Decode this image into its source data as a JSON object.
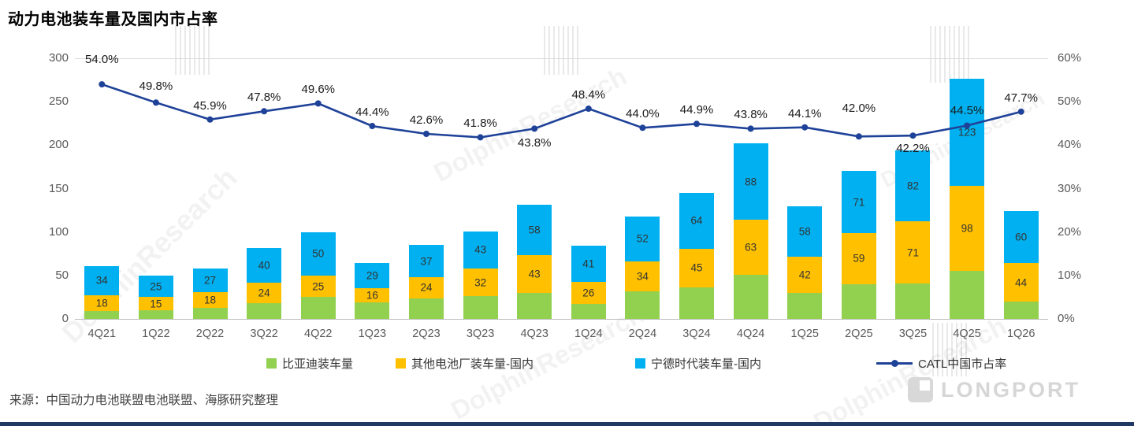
{
  "title": "动力电池装车量及国内市占率",
  "source_note": "来源：中国动力电池联盟电池联盟、海豚研究整理",
  "watermark": {
    "text": "DolphinResearch",
    "logo_text": "LONGPORT"
  },
  "colors": {
    "byd_green": "#92D050",
    "others_yellow": "#FFC000",
    "catl_blue": "#00B0F0",
    "share_line": "#1F4299",
    "axis_text": "#595959",
    "bottom_bar": "#1F3864"
  },
  "chart_data": {
    "type": "bar+line",
    "title": "动力电池装车量及国内市占率",
    "categories": [
      "4Q21",
      "1Q22",
      "2Q22",
      "3Q22",
      "4Q22",
      "1Q23",
      "2Q23",
      "3Q23",
      "4Q23",
      "1Q24",
      "2Q24",
      "3Q24",
      "4Q24",
      "1Q25",
      "2Q25",
      "3Q25",
      "4Q25",
      "1Q26"
    ],
    "stacked": true,
    "bar_series": [
      {
        "key": "byd",
        "name": "比亚迪装车量",
        "color": "#92D050",
        "values": [
          9,
          10,
          13,
          18,
          25,
          19,
          24,
          26,
          30,
          17,
          32,
          36,
          51,
          30,
          40,
          41,
          55,
          20
        ],
        "labels": [
          "",
          "",
          "",
          "",
          "",
          "",
          "",
          "",
          "",
          "",
          "",
          "",
          "",
          "",
          "",
          "",
          "",
          ""
        ]
      },
      {
        "key": "others",
        "name": "其他电池厂装车量-国内",
        "color": "#FFC000",
        "values": [
          18,
          15,
          18,
          24,
          25,
          16,
          24,
          32,
          43,
          26,
          34,
          45,
          63,
          42,
          59,
          71,
          98,
          44
        ],
        "labels": [
          "18",
          "15",
          "18",
          "24",
          "25",
          "16",
          "24",
          "32",
          "43",
          "26",
          "34",
          "45",
          "63",
          "42",
          "59",
          "71",
          "98",
          "44"
        ]
      },
      {
        "key": "catl",
        "name": "宁德时代装车量-国内",
        "color": "#00B0F0",
        "values": [
          34,
          25,
          27,
          40,
          50,
          29,
          37,
          43,
          58,
          41,
          52,
          64,
          88,
          58,
          71,
          82,
          123,
          60
        ],
        "labels": [
          "34",
          "25",
          "27",
          "40",
          "50",
          "29",
          "37",
          "43",
          "58",
          "41",
          "52",
          "64",
          "88",
          "58",
          "71",
          "82",
          "123",
          "60"
        ]
      }
    ],
    "line_series": {
      "name": "CATL中国市占率",
      "color": "#1F4299",
      "values": [
        54.0,
        49.8,
        45.9,
        47.8,
        49.6,
        44.4,
        42.6,
        41.8,
        43.8,
        48.4,
        44.0,
        44.9,
        43.8,
        44.1,
        42.0,
        42.2,
        44.5,
        47.7
      ],
      "labels": [
        "54.0%",
        "49.8%",
        "45.9%",
        "47.8%",
        "49.6%",
        "44.4%",
        "42.6%",
        "41.8%",
        "43.8%",
        "48.4%",
        "44.0%",
        "44.9%",
        "43.8%",
        "44.1%",
        "42.0%",
        "42.2%",
        "44.5%",
        "47.7%"
      ],
      "label_dy": [
        -40,
        -29,
        -26,
        -26,
        -26,
        -26,
        -26,
        -26,
        10,
        -26,
        -26,
        -26,
        -26,
        -26,
        -44,
        8,
        -28,
        -26
      ]
    },
    "left_axis": {
      "min": 0,
      "max": 300,
      "step": 50,
      "ticks": [
        "0",
        "50",
        "100",
        "150",
        "200",
        "250",
        "300"
      ]
    },
    "right_axis": {
      "min": 0,
      "max": 60,
      "step": 10,
      "ticks": [
        "0%",
        "10%",
        "20%",
        "30%",
        "40%",
        "50%",
        "60%"
      ]
    },
    "legend": [
      {
        "label": "比亚迪装车量",
        "color": "#92D050",
        "type": "square"
      },
      {
        "label": "其他电池厂装车量-国内",
        "color": "#FFC000",
        "type": "square"
      },
      {
        "label": "宁德时代装车量-国内",
        "color": "#00B0F0",
        "type": "square"
      },
      {
        "label": "CATL中国市占率",
        "color": "#1F4299",
        "type": "line"
      }
    ],
    "grid": "top-border-only",
    "legend_position": "bottom"
  }
}
